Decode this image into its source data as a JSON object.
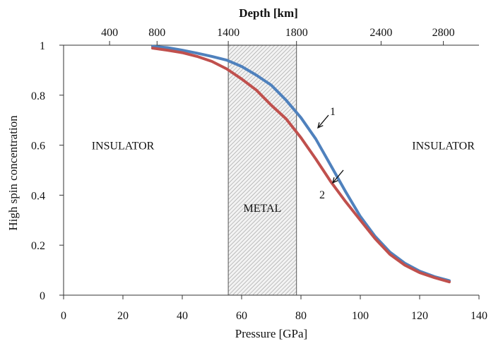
{
  "chart_data": {
    "type": "line",
    "title": "",
    "xlabel": "Pressure [GPa]",
    "ylabel": "High spin concentration",
    "x2label": "Depth [km]",
    "xlim": [
      0,
      140
    ],
    "ylim": [
      0,
      1
    ],
    "x_ticks": [
      0,
      20,
      40,
      60,
      80,
      100,
      120,
      140
    ],
    "x_tick_labels": [
      "0",
      "20",
      "40",
      "60",
      "80",
      "100",
      "120",
      "140"
    ],
    "y_ticks": [
      0,
      0.2,
      0.4,
      0.6,
      0.8,
      1
    ],
    "y_tick_labels": [
      "0",
      "0.2",
      "0.4",
      "0.6",
      "0.8",
      "1"
    ],
    "depth_ticks": [
      {
        "label": "400",
        "pressure": 15.5
      },
      {
        "label": "800",
        "pressure": 31.5
      },
      {
        "label": "1400",
        "pressure": 55.5
      },
      {
        "label": "1800",
        "pressure": 78.5
      },
      {
        "label": "2400",
        "pressure": 107
      },
      {
        "label": "2800",
        "pressure": 128
      }
    ],
    "grid": false,
    "shaded_region": {
      "x": [
        55.5,
        78.5
      ],
      "label": "METAL",
      "pattern": "hatched"
    },
    "regions": [
      {
        "label": "INSULATOR",
        "x": 20,
        "y": 0.6
      },
      {
        "label": "METAL",
        "x": 67,
        "y": 0.35
      },
      {
        "label": "INSULATOR",
        "x": 128,
        "y": 0.6
      }
    ],
    "series": [
      {
        "name": "1",
        "color": "#4F81BD",
        "x": [
          30,
          35,
          40,
          45,
          50,
          55,
          60,
          65,
          70,
          75,
          80,
          85,
          90,
          95,
          100,
          105,
          110,
          115,
          120,
          125,
          130
        ],
        "y": [
          0.995,
          0.99,
          0.98,
          0.968,
          0.955,
          0.94,
          0.915,
          0.88,
          0.84,
          0.78,
          0.71,
          0.625,
          0.52,
          0.415,
          0.315,
          0.235,
          0.172,
          0.128,
          0.096,
          0.074,
          0.058
        ]
      },
      {
        "name": "2",
        "color": "#C0504D",
        "x": [
          30,
          35,
          40,
          45,
          50,
          55,
          60,
          65,
          70,
          75,
          80,
          85,
          90,
          95,
          100,
          105,
          110,
          115,
          120,
          125,
          130
        ],
        "y": [
          0.988,
          0.98,
          0.97,
          0.955,
          0.935,
          0.905,
          0.865,
          0.82,
          0.76,
          0.705,
          0.63,
          0.545,
          0.455,
          0.375,
          0.3,
          0.226,
          0.163,
          0.12,
          0.09,
          0.07,
          0.053
        ]
      }
    ],
    "annotations": [
      {
        "text": "1",
        "series": "1",
        "x": 85,
        "y": 0.675
      },
      {
        "text": "2",
        "series": "2",
        "x": 90,
        "y": 0.455
      }
    ]
  }
}
